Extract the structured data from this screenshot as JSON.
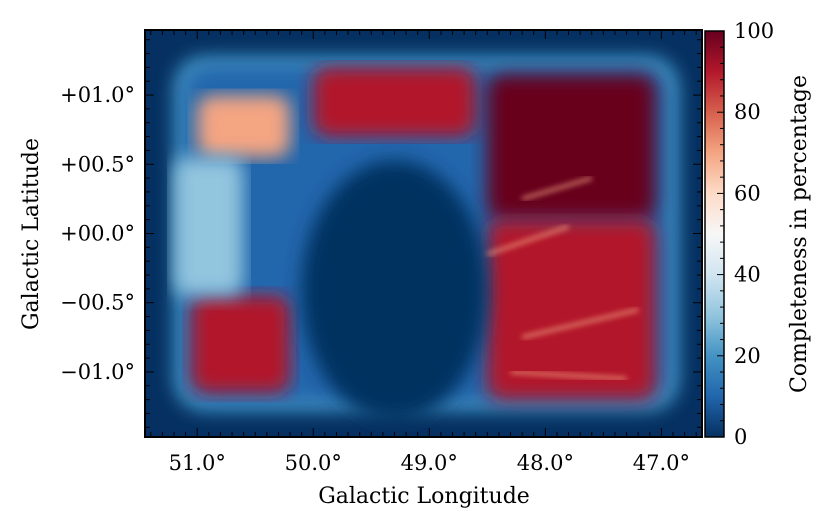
{
  "chart_data": {
    "type": "heatmap",
    "title": "",
    "xlabel": "Galactic Longitude",
    "ylabel": "Galactic Latitude",
    "colorbar_label": "Completeness in percentage",
    "xlim": [
      51.45,
      46.65
    ],
    "ylim": [
      -1.47,
      1.47
    ],
    "x_ticks": [
      51.0,
      50.0,
      49.0,
      48.0,
      47.0
    ],
    "x_tick_labels": [
      "51.0°",
      "50.0°",
      "49.0°",
      "48.0°",
      "47.0°"
    ],
    "y_ticks": [
      1.0,
      0.5,
      0.0,
      -0.5,
      -1.0
    ],
    "y_tick_labels": [
      "+01.0°",
      "+00.5°",
      "+00.0°",
      "−00.5°",
      "−01.0°"
    ],
    "colorbar_range": [
      0,
      100
    ],
    "colorbar_ticks": [
      0,
      20,
      40,
      60,
      80,
      100
    ],
    "colorbar_tick_labels": [
      "0",
      "20",
      "40",
      "60",
      "80",
      "100"
    ],
    "colormap": [
      "#053061",
      "#2166ac",
      "#4393c3",
      "#92c5de",
      "#d1e5f0",
      "#f7f7f7",
      "#fddbc7",
      "#f4a582",
      "#d6604d",
      "#b2182b",
      "#67001f"
    ],
    "survey_extent": {
      "l": [
        51.2,
        46.85
      ],
      "b": [
        -1.28,
        1.28
      ],
      "background_value": 5
    },
    "regions": [
      {
        "name": "upper-arc",
        "l": [
          50.0,
          48.6
        ],
        "b": [
          0.7,
          1.2
        ],
        "value": 88
      },
      {
        "name": "upper-left-patch",
        "l": [
          51.0,
          50.2
        ],
        "b": [
          0.55,
          1.0
        ],
        "value": 70
      },
      {
        "name": "upper-right-block",
        "l": [
          48.5,
          47.05
        ],
        "b": [
          0.1,
          1.15
        ],
        "value": 95
      },
      {
        "name": "right-lower-block",
        "l": [
          48.5,
          47.05
        ],
        "b": [
          -1.2,
          0.1
        ],
        "value": 88
      },
      {
        "name": "lower-left-patch",
        "l": [
          51.05,
          50.2
        ],
        "b": [
          -1.15,
          -0.45
        ],
        "value": 88
      },
      {
        "name": "left-edge-band",
        "l": [
          51.2,
          50.6
        ],
        "b": [
          -0.45,
          0.55
        ],
        "value": 30
      },
      {
        "name": "central-hole",
        "l": [
          50.1,
          48.5
        ],
        "b": [
          -1.28,
          0.6
        ],
        "value": 2
      }
    ]
  }
}
